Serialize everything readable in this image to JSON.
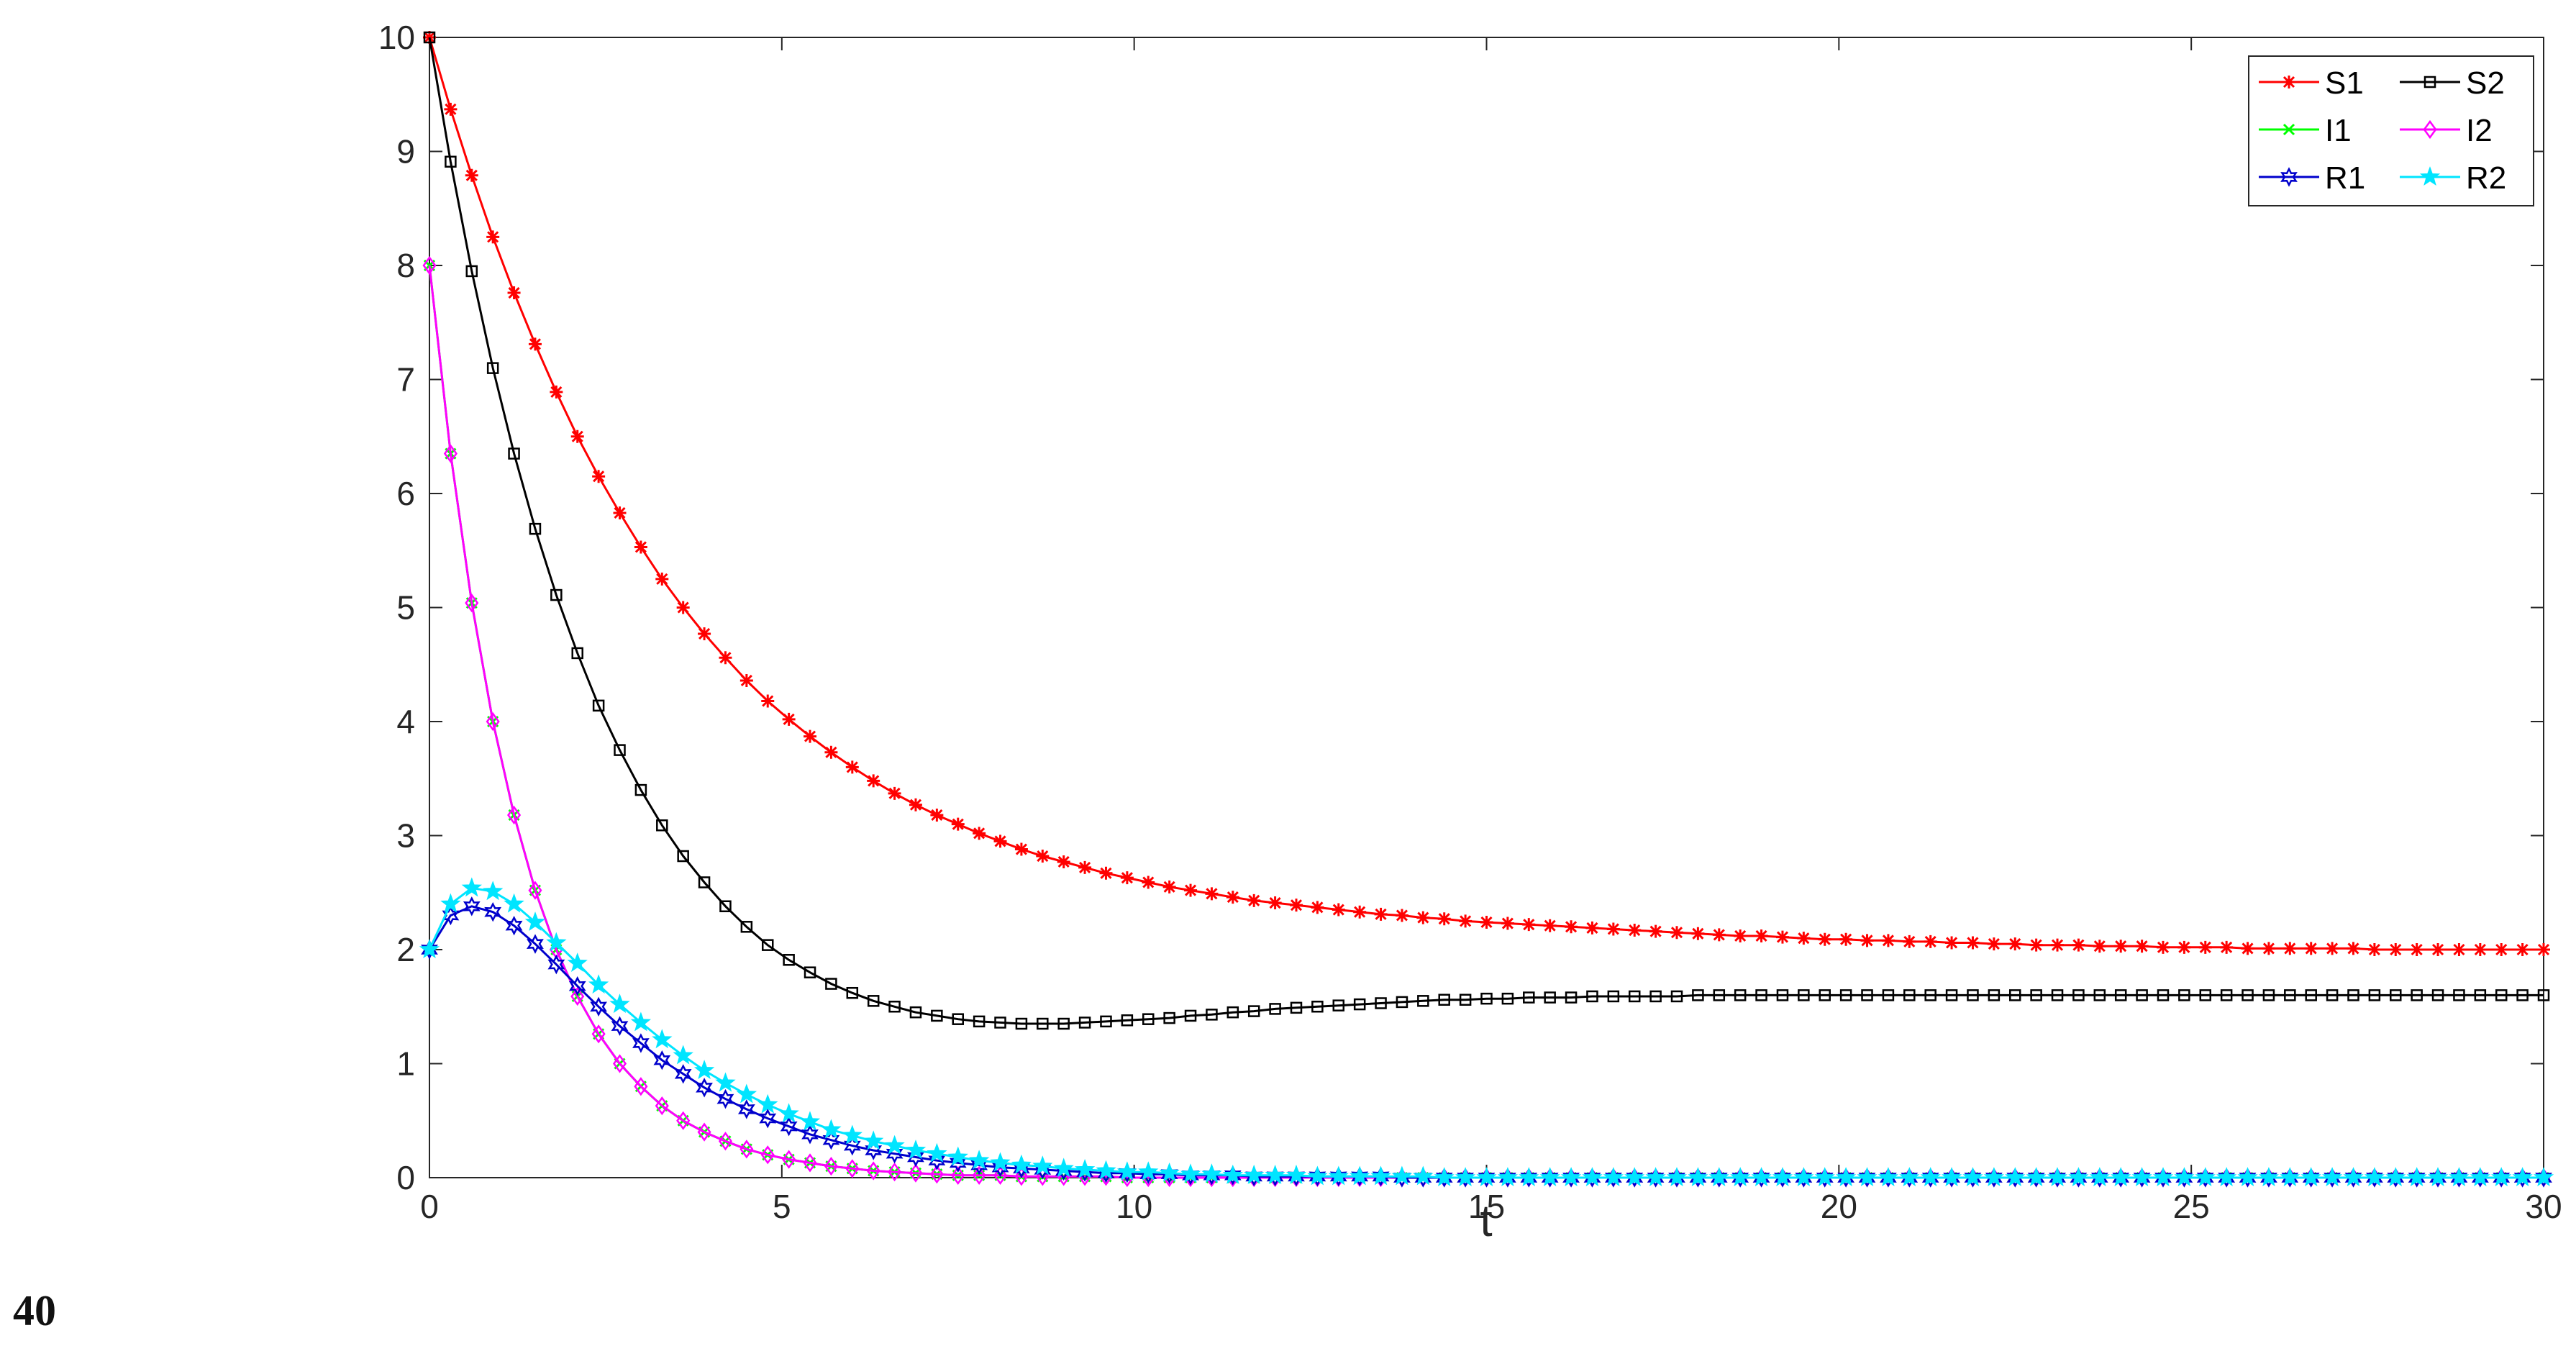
{
  "page_number": "40",
  "chart_data": {
    "type": "line",
    "xlabel": "t",
    "ylabel": "",
    "xlim": [
      0,
      30
    ],
    "ylim": [
      0,
      10
    ],
    "x_ticks": [
      0,
      5,
      10,
      15,
      20,
      25,
      30
    ],
    "y_ticks": [
      0,
      1,
      2,
      3,
      4,
      5,
      6,
      7,
      8,
      9,
      10
    ],
    "grid": false,
    "legend_position": "top-right",
    "sampling": {
      "t_start": 0,
      "t_end": 30,
      "points": 101
    },
    "series": [
      {
        "name": "S1",
        "color": "#ff0000",
        "marker": "asterisk",
        "values": [
          10.0,
          9.37,
          8.79,
          8.25,
          7.76,
          7.31,
          6.89,
          6.5,
          6.15,
          5.83,
          5.53,
          5.25,
          5.0,
          4.77,
          4.56,
          4.36,
          4.18,
          4.02,
          3.87,
          3.73,
          3.6,
          3.48,
          3.37,
          3.27,
          3.18,
          3.1,
          3.02,
          2.95,
          2.88,
          2.82,
          2.77,
          2.72,
          2.67,
          2.63,
          2.59,
          2.55,
          2.52,
          2.49,
          2.46,
          2.43,
          2.41,
          2.39,
          2.37,
          2.35,
          2.33,
          2.31,
          2.3,
          2.28,
          2.27,
          2.25,
          2.24,
          2.23,
          2.22,
          2.21,
          2.2,
          2.19,
          2.18,
          2.17,
          2.16,
          2.15,
          2.14,
          2.13,
          2.12,
          2.12,
          2.11,
          2.1,
          2.09,
          2.09,
          2.08,
          2.08,
          2.07,
          2.07,
          2.06,
          2.06,
          2.05,
          2.05,
          2.04,
          2.04,
          2.04,
          2.03,
          2.03,
          2.03,
          2.02,
          2.02,
          2.02,
          2.02,
          2.01,
          2.01,
          2.01,
          2.01,
          2.01,
          2.01,
          2.0,
          2.0,
          2.0,
          2.0,
          2.0,
          2.0,
          2.0,
          2.0,
          2.0
        ]
      },
      {
        "name": "S2",
        "color": "#000000",
        "marker": "square",
        "values": [
          10.0,
          8.91,
          7.95,
          7.1,
          6.35,
          5.69,
          5.11,
          4.6,
          4.14,
          3.75,
          3.4,
          3.09,
          2.82,
          2.59,
          2.38,
          2.2,
          2.04,
          1.91,
          1.8,
          1.7,
          1.62,
          1.55,
          1.5,
          1.45,
          1.42,
          1.39,
          1.37,
          1.36,
          1.35,
          1.35,
          1.35,
          1.36,
          1.37,
          1.38,
          1.39,
          1.4,
          1.42,
          1.43,
          1.45,
          1.46,
          1.48,
          1.49,
          1.5,
          1.51,
          1.52,
          1.53,
          1.54,
          1.55,
          1.56,
          1.56,
          1.57,
          1.57,
          1.58,
          1.58,
          1.58,
          1.59,
          1.59,
          1.59,
          1.59,
          1.59,
          1.6,
          1.6,
          1.6,
          1.6,
          1.6,
          1.6,
          1.6,
          1.6,
          1.6,
          1.6,
          1.6,
          1.6,
          1.6,
          1.6,
          1.6,
          1.6,
          1.6,
          1.6,
          1.6,
          1.6,
          1.6,
          1.6,
          1.6,
          1.6,
          1.6,
          1.6,
          1.6,
          1.6,
          1.6,
          1.6,
          1.6,
          1.6,
          1.6,
          1.6,
          1.6,
          1.6,
          1.6,
          1.6,
          1.6,
          1.6,
          1.6
        ]
      },
      {
        "name": "I1",
        "color": "#00ff00",
        "marker": "x",
        "values": [
          8.0,
          6.35,
          5.04,
          4.0,
          3.18,
          2.52,
          2.0,
          1.59,
          1.26,
          1.0,
          0.8,
          0.63,
          0.5,
          0.4,
          0.32,
          0.25,
          0.2,
          0.16,
          0.13,
          0.1,
          0.08,
          0.06,
          0.05,
          0.04,
          0.03,
          0.02,
          0.02,
          0.02,
          0.01,
          0.01,
          0.01,
          0.01,
          0.01,
          0.0,
          0.0,
          0.0,
          0.0,
          0.0,
          0.0,
          0.0,
          0.0,
          0.0,
          0.0,
          0.0,
          0.0,
          0.0,
          0.0,
          0.0,
          0.0,
          0.0,
          0.0,
          0.0,
          0.0,
          0.0,
          0.0,
          0.0,
          0.0,
          0.0,
          0.0,
          0.0,
          0.0,
          0.0,
          0.0,
          0.0,
          0.0,
          0.0,
          0.0,
          0.0,
          0.0,
          0.0,
          0.0,
          0.0,
          0.0,
          0.0,
          0.0,
          0.0,
          0.0,
          0.0,
          0.0,
          0.0,
          0.0,
          0.0,
          0.0,
          0.0,
          0.0,
          0.0,
          0.0,
          0.0,
          0.0,
          0.0,
          0.0,
          0.0,
          0.0,
          0.0,
          0.0,
          0.0,
          0.0,
          0.0,
          0.0,
          0.0,
          0.0
        ]
      },
      {
        "name": "I2",
        "color": "#ff00ff",
        "marker": "diamond",
        "values": [
          8.0,
          6.35,
          5.04,
          4.0,
          3.18,
          2.52,
          2.0,
          1.59,
          1.26,
          1.0,
          0.8,
          0.63,
          0.5,
          0.4,
          0.32,
          0.25,
          0.2,
          0.16,
          0.13,
          0.1,
          0.08,
          0.06,
          0.05,
          0.04,
          0.03,
          0.02,
          0.02,
          0.02,
          0.01,
          0.01,
          0.01,
          0.01,
          0.01,
          0.0,
          0.0,
          0.0,
          0.0,
          0.0,
          0.0,
          0.0,
          0.0,
          0.0,
          0.0,
          0.0,
          0.0,
          0.0,
          0.0,
          0.0,
          0.0,
          0.0,
          0.0,
          0.0,
          0.0,
          0.0,
          0.0,
          0.0,
          0.0,
          0.0,
          0.0,
          0.0,
          0.0,
          0.0,
          0.0,
          0.0,
          0.0,
          0.0,
          0.0,
          0.0,
          0.0,
          0.0,
          0.0,
          0.0,
          0.0,
          0.0,
          0.0,
          0.0,
          0.0,
          0.0,
          0.0,
          0.0,
          0.0,
          0.0,
          0.0,
          0.0,
          0.0,
          0.0,
          0.0,
          0.0,
          0.0,
          0.0,
          0.0,
          0.0,
          0.0,
          0.0,
          0.0,
          0.0,
          0.0,
          0.0,
          0.0,
          0.0,
          0.0
        ]
      },
      {
        "name": "R1",
        "color": "#0000cc",
        "marker": "hexagram",
        "values": [
          2.0,
          2.3,
          2.38,
          2.33,
          2.21,
          2.05,
          1.87,
          1.68,
          1.5,
          1.33,
          1.18,
          1.03,
          0.91,
          0.79,
          0.69,
          0.6,
          0.52,
          0.45,
          0.38,
          0.33,
          0.28,
          0.24,
          0.21,
          0.18,
          0.15,
          0.13,
          0.11,
          0.09,
          0.08,
          0.07,
          0.06,
          0.05,
          0.04,
          0.04,
          0.03,
          0.03,
          0.02,
          0.02,
          0.02,
          0.01,
          0.01,
          0.01,
          0.01,
          0.01,
          0.01,
          0.01,
          0.0,
          0.0,
          0.0,
          0.0,
          0.0,
          0.0,
          0.0,
          0.0,
          0.0,
          0.0,
          0.0,
          0.0,
          0.0,
          0.0,
          0.0,
          0.0,
          0.0,
          0.0,
          0.0,
          0.0,
          0.0,
          0.0,
          0.0,
          0.0,
          0.0,
          0.0,
          0.0,
          0.0,
          0.0,
          0.0,
          0.0,
          0.0,
          0.0,
          0.0,
          0.0,
          0.0,
          0.0,
          0.0,
          0.0,
          0.0,
          0.0,
          0.0,
          0.0,
          0.0,
          0.0,
          0.0,
          0.0,
          0.0,
          0.0,
          0.0,
          0.0,
          0.0,
          0.0,
          0.0,
          0.0
        ]
      },
      {
        "name": "R2",
        "color": "#00e5ff",
        "marker": "pentagram",
        "values": [
          2.0,
          2.4,
          2.54,
          2.51,
          2.4,
          2.24,
          2.06,
          1.88,
          1.69,
          1.52,
          1.36,
          1.21,
          1.07,
          0.94,
          0.83,
          0.73,
          0.64,
          0.56,
          0.49,
          0.42,
          0.37,
          0.32,
          0.28,
          0.24,
          0.21,
          0.18,
          0.15,
          0.13,
          0.11,
          0.1,
          0.08,
          0.07,
          0.06,
          0.05,
          0.05,
          0.04,
          0.03,
          0.03,
          0.02,
          0.02,
          0.02,
          0.02,
          0.01,
          0.01,
          0.01,
          0.01,
          0.01,
          0.01,
          0.0,
          0.0,
          0.0,
          0.0,
          0.0,
          0.0,
          0.0,
          0.0,
          0.0,
          0.0,
          0.0,
          0.0,
          0.0,
          0.0,
          0.0,
          0.0,
          0.0,
          0.0,
          0.0,
          0.0,
          0.0,
          0.0,
          0.0,
          0.0,
          0.0,
          0.0,
          0.0,
          0.0,
          0.0,
          0.0,
          0.0,
          0.0,
          0.0,
          0.0,
          0.0,
          0.0,
          0.0,
          0.0,
          0.0,
          0.0,
          0.0,
          0.0,
          0.0,
          0.0,
          0.0,
          0.0,
          0.0,
          0.0,
          0.0,
          0.0,
          0.0,
          0.0,
          0.0
        ]
      }
    ]
  }
}
